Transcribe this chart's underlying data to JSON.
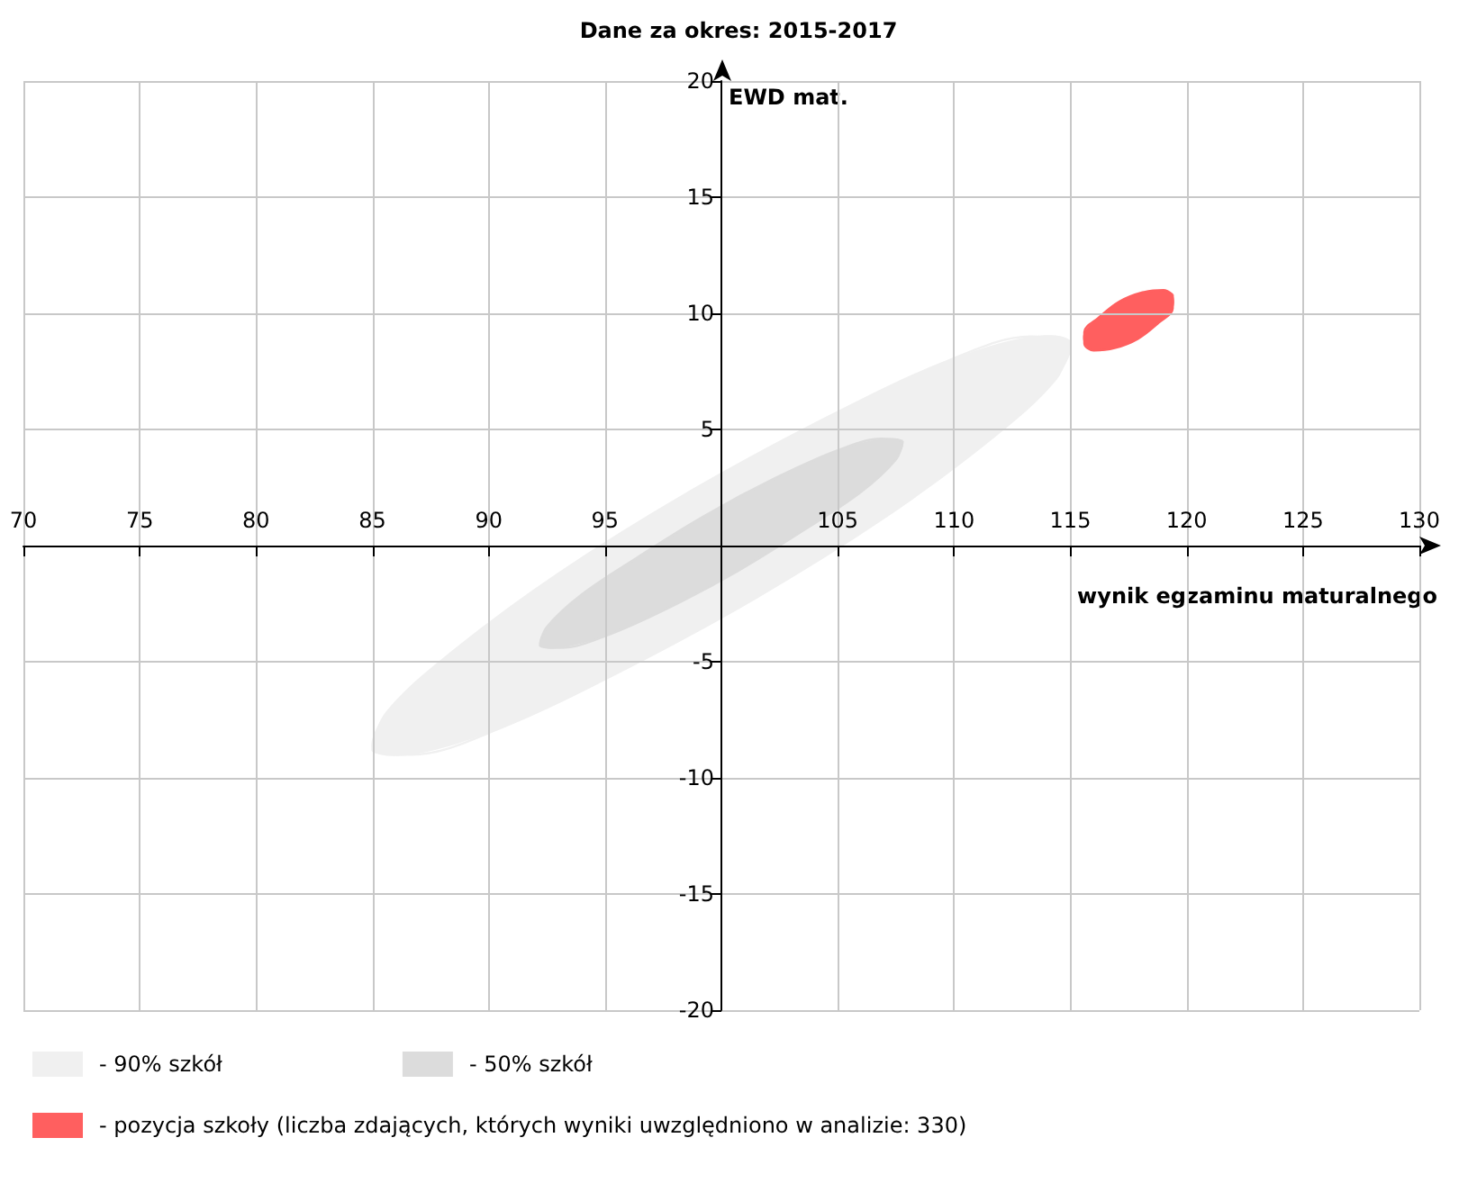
{
  "chart_data": {
    "type": "area",
    "title": "Dane za okres: 2015-2017",
    "xlabel": "wynik egzaminu maturalnego",
    "ylabel": "EWD mat.",
    "xlim": [
      70,
      130
    ],
    "ylim": [
      -20,
      20
    ],
    "xticks": [
      70,
      75,
      80,
      85,
      90,
      95,
      {
        "value": 100,
        "label": null
      },
      105,
      110,
      115,
      120,
      125,
      130
    ],
    "yticks": [
      -20,
      -15,
      -10,
      -5,
      {
        "value": 0,
        "label": null
      },
      5,
      10,
      15,
      20
    ],
    "grid": true,
    "legend": "bottom",
    "series": [
      {
        "name": "- 90% szkół",
        "color": "#f0f0f0",
        "x": [
          115,
          113.3,
          109.6,
          104.5,
          98.6,
          93,
          88.4,
          85.6,
          85,
          86.7,
          90.4,
          95.5,
          101.4,
          107,
          111.6,
          114.4
        ],
        "values": [
          8.8,
          9,
          7.9,
          5.5,
          2.3,
          -1.2,
          -4.6,
          -7.2,
          -8.8,
          -9,
          -7.9,
          -5.5,
          -2.3,
          1.2,
          4.6,
          7.2
        ]
      },
      {
        "name": "- 50% szkół",
        "color": "#dcdcdc",
        "x": [
          107.8,
          106.9,
          105,
          102.3,
          99.3,
          96.4,
          94,
          92.5,
          92.2,
          93.1,
          95,
          97.7,
          100.7,
          103.6,
          106,
          107.5
        ],
        "values": [
          4.5,
          4.6,
          4.1,
          2.9,
          1.3,
          -0.5,
          -2.1,
          -3.5,
          -4.3,
          -4.4,
          -3.9,
          -2.7,
          -1.1,
          0.7,
          2.3,
          3.7
        ]
      },
      {
        "name": "- pozycja szkoły (liczba zdających, których wyniki uwzględniono w analizie: 330)",
        "color": "#ff5f5f",
        "x": [
          119.4,
          119,
          118.1,
          117.1,
          116.2,
          115.6,
          115.6,
          116,
          116.9,
          117.9,
          118.8,
          119.4
        ],
        "values": [
          10.8,
          11,
          10.9,
          10.5,
          9.8,
          9.2,
          8.7,
          8.4,
          8.5,
          8.9,
          9.6,
          10.2
        ]
      }
    ]
  }
}
